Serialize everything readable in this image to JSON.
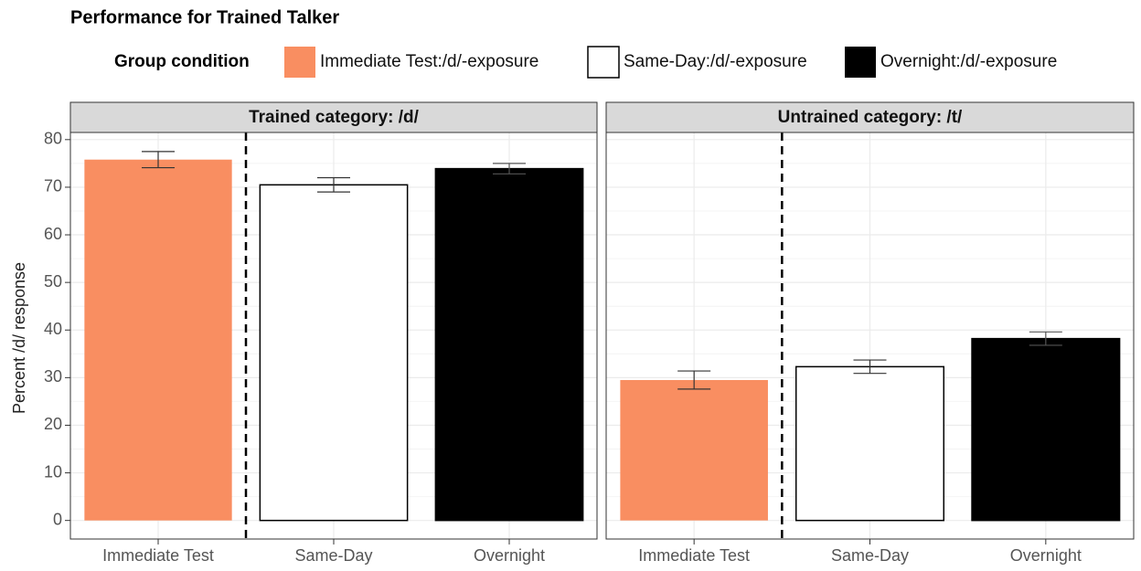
{
  "chart_data": {
    "type": "bar",
    "title": "Performance for Trained Talker",
    "legend_title": "Group condition",
    "legend": [
      {
        "name": "Immediate Test:/d/-exposure",
        "color": "#f98e61"
      },
      {
        "name": "Same-Day:/d/-exposure",
        "color": "#ffffff"
      },
      {
        "name": "Overnight:/d/-exposure",
        "color": "#000000"
      }
    ],
    "ylabel": "Percent /d/ response",
    "categories": [
      "Immediate Test",
      "Same-Day",
      "Overnight"
    ],
    "facets": [
      {
        "title": "Trained category: /d/",
        "values": [
          75.8,
          70.5,
          73.9
        ],
        "errors": [
          1.7,
          1.5,
          1.1
        ]
      },
      {
        "title": "Untrained category: /t/",
        "values": [
          29.5,
          32.3,
          38.2
        ],
        "errors": [
          1.9,
          1.4,
          1.4
        ]
      }
    ],
    "ylim": [
      -3.9,
      81.5
    ],
    "yticks": [
      0,
      10,
      20,
      30,
      40,
      50,
      60,
      70,
      80
    ],
    "grid": true
  }
}
